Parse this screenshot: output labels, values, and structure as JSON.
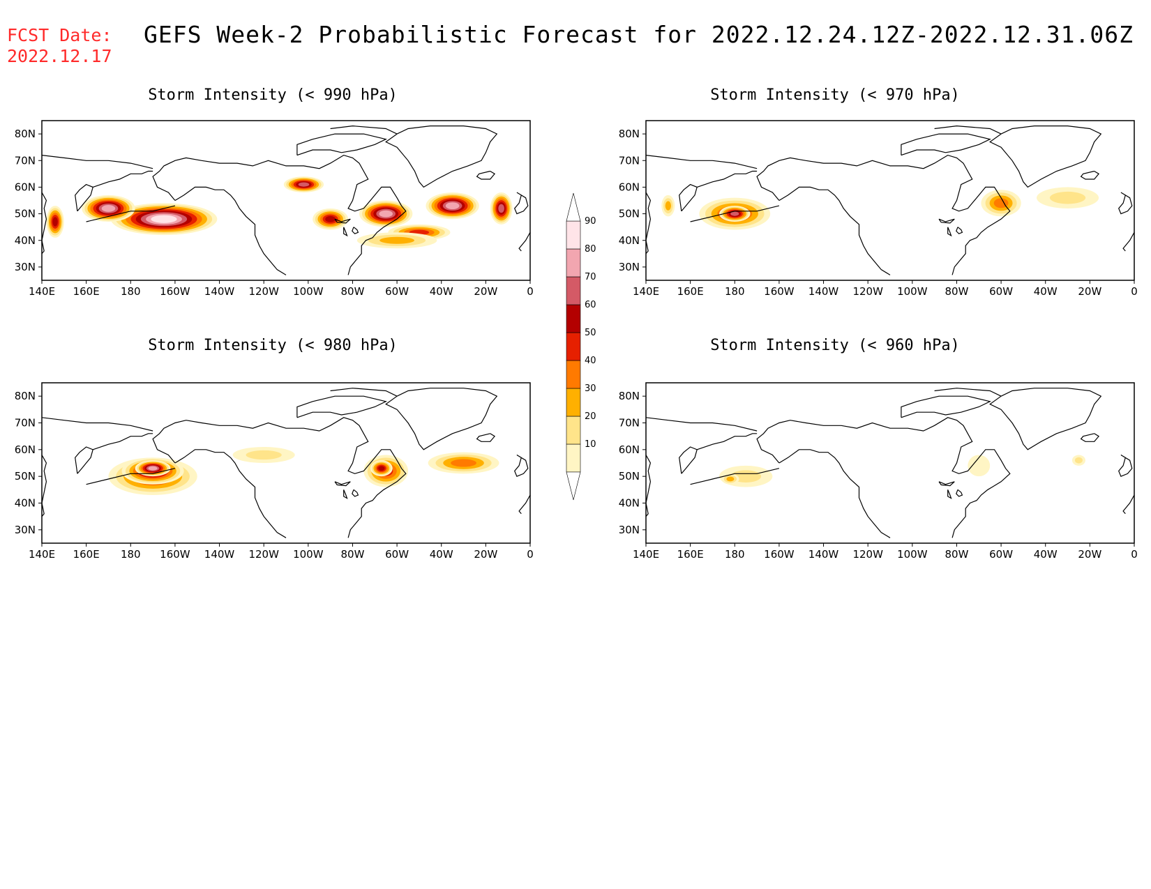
{
  "header": {
    "fcst_label": "FCST Date:",
    "fcst_date": "2022.12.17",
    "title": "GEFS Week-2 Probabilistic Forecast for 2022.12.24.12Z-2022.12.31.06Z"
  },
  "panels": [
    {
      "id": "p990",
      "title": "Storm Intensity (< 990 hPa)"
    },
    {
      "id": "p970",
      "title": "Storm Intensity (< 970 hPa)"
    },
    {
      "id": "p980",
      "title": "Storm Intensity (< 980 hPa)"
    },
    {
      "id": "p960",
      "title": "Storm Intensity (< 960 hPa)"
    }
  ],
  "axes": {
    "lat_labels": [
      "80N",
      "70N",
      "60N",
      "50N",
      "40N",
      "30N"
    ],
    "lat_values": [
      80,
      70,
      60,
      50,
      40,
      30
    ],
    "lon_labels": [
      "140E",
      "160E",
      "180",
      "160W",
      "140W",
      "120W",
      "100W",
      "80W",
      "60W",
      "40W",
      "20W",
      "0"
    ],
    "lon_values": [
      140,
      160,
      180,
      -160,
      -140,
      -120,
      -100,
      -80,
      -60,
      -40,
      -20,
      0
    ],
    "lat_range": [
      25,
      85
    ],
    "lon_range": [
      140,
      360
    ]
  },
  "colorbar": {
    "levels": [
      "10",
      "20",
      "30",
      "40",
      "50",
      "60",
      "70",
      "80",
      "90"
    ],
    "colors": [
      "#fff5c4",
      "#ffe48a",
      "#ffb000",
      "#ff7a00",
      "#e62000",
      "#b30000",
      "#d45a66",
      "#f2a6b0",
      "#ffe4e8"
    ]
  },
  "map_data": {
    "p990": [
      {
        "lat": 48,
        "lon": 195,
        "a": 24,
        "b": 6,
        "v": 9
      },
      {
        "lat": 52,
        "lon": 170,
        "a": 12,
        "b": 5,
        "v": 8
      },
      {
        "lat": 50,
        "lon": 295,
        "a": 12,
        "b": 5,
        "v": 8
      },
      {
        "lat": 53,
        "lon": 325,
        "a": 12,
        "b": 5,
        "v": 8
      },
      {
        "lat": 61,
        "lon": 258,
        "a": 9,
        "b": 3,
        "v": 7
      },
      {
        "lat": 52,
        "lon": 347,
        "a": 5,
        "b": 6,
        "v": 7
      },
      {
        "lat": 48,
        "lon": 270,
        "a": 8,
        "b": 4,
        "v": 6
      },
      {
        "lat": 43,
        "lon": 310,
        "a": 14,
        "b": 3,
        "v": 5
      },
      {
        "lat": 40,
        "lon": 300,
        "a": 18,
        "b": 3,
        "v": 3
      },
      {
        "lat": 47,
        "lon": 146,
        "a": 4,
        "b": 6,
        "v": 6
      }
    ],
    "p970": [
      {
        "lat": 50,
        "lon": 180,
        "a": 16,
        "b": 6,
        "v": 5
      },
      {
        "lat": 50,
        "lon": 180,
        "a": 7,
        "b": 3,
        "v": 7
      },
      {
        "lat": 54,
        "lon": 300,
        "a": 9,
        "b": 5,
        "v": 4
      },
      {
        "lat": 56,
        "lon": 330,
        "a": 14,
        "b": 4,
        "v": 2
      },
      {
        "lat": 53,
        "lon": 150,
        "a": 3,
        "b": 4,
        "v": 3
      }
    ],
    "p980": [
      {
        "lat": 50,
        "lon": 190,
        "a": 20,
        "b": 7,
        "v": 5
      },
      {
        "lat": 52,
        "lon": 190,
        "a": 14,
        "b": 5,
        "v": 7
      },
      {
        "lat": 53,
        "lon": 190,
        "a": 8,
        "b": 3,
        "v": 8
      },
      {
        "lat": 52,
        "lon": 295,
        "a": 10,
        "b": 6,
        "v": 5
      },
      {
        "lat": 53,
        "lon": 293,
        "a": 5,
        "b": 3,
        "v": 6
      },
      {
        "lat": 55,
        "lon": 330,
        "a": 16,
        "b": 4,
        "v": 4
      },
      {
        "lat": 58,
        "lon": 240,
        "a": 14,
        "b": 3,
        "v": 2
      }
    ],
    "p960": [
      {
        "lat": 50,
        "lon": 185,
        "a": 12,
        "b": 4,
        "v": 2
      },
      {
        "lat": 49,
        "lon": 178,
        "a": 4,
        "b": 2,
        "v": 3
      },
      {
        "lat": 54,
        "lon": 290,
        "a": 5,
        "b": 4,
        "v": 1
      },
      {
        "lat": 56,
        "lon": 335,
        "a": 3,
        "b": 2,
        "v": 2
      }
    ]
  }
}
